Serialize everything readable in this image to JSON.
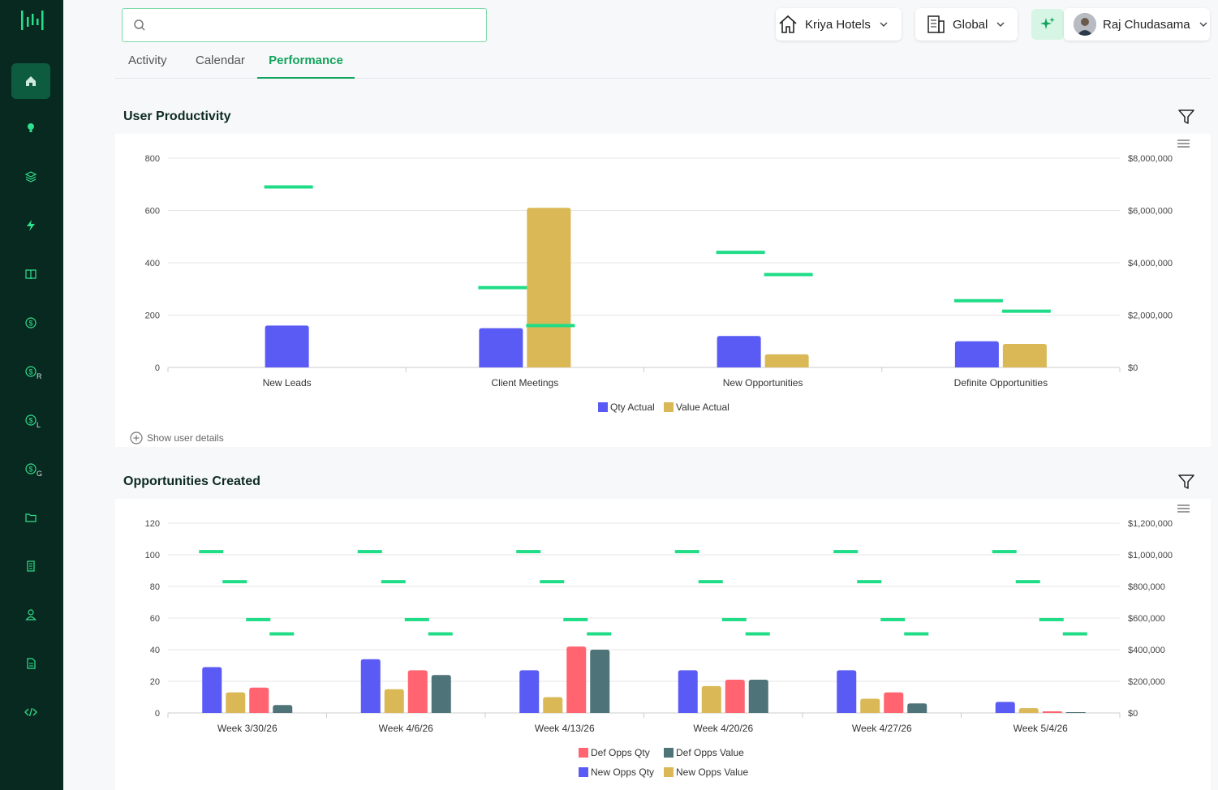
{
  "search": {
    "placeholder": ""
  },
  "tabs": [
    {
      "label": "Activity"
    },
    {
      "label": "Calendar"
    },
    {
      "label": "Performance"
    }
  ],
  "header": {
    "hotel": "Kriya Hotels",
    "scope": "Global",
    "user": "Raj Chudasama"
  },
  "sidebar": {
    "items": [
      {
        "icon": "home-icon"
      },
      {
        "icon": "lightbulb-icon"
      },
      {
        "icon": "layers-icon"
      },
      {
        "icon": "bolt-icon"
      },
      {
        "icon": "book-icon"
      },
      {
        "icon": "dollar-icon"
      },
      {
        "icon": "dollar-icon",
        "sub": "R"
      },
      {
        "icon": "dollar-icon",
        "sub": "L"
      },
      {
        "icon": "dollar-icon",
        "sub": "G"
      },
      {
        "icon": "folder-icon"
      },
      {
        "icon": "building-icon"
      },
      {
        "icon": "user-icon"
      },
      {
        "icon": "document-icon"
      },
      {
        "icon": "code-icon"
      }
    ]
  },
  "productivity": {
    "title": "User Productivity",
    "show_details": "Show user details"
  },
  "opportunities": {
    "title": "Opportunities Created"
  },
  "colors": {
    "accent": "#13a35e",
    "qty": "#5a5af5",
    "value": "#d9b855",
    "def_qty": "#ff6470",
    "def_value": "#4e7378",
    "target": "#1fdc87"
  },
  "chart_data": [
    {
      "type": "bar",
      "title": "User Productivity",
      "categories": [
        "New Leads",
        "Client Meetings",
        "New Opportunities",
        "Definite Opportunities"
      ],
      "ylim": [
        0,
        800
      ],
      "y2lim": [
        0,
        8000000
      ],
      "y_ticks": [
        "0",
        "200",
        "400",
        "600",
        "800"
      ],
      "y2_ticks": [
        "$0",
        "$2,000,000",
        "$4,000,000",
        "$6,000,000",
        "$8,000,000"
      ],
      "series": [
        {
          "name": "Qty Actual",
          "axis": "left",
          "values": [
            160,
            150,
            120,
            100
          ]
        },
        {
          "name": "Value Actual",
          "axis": "right",
          "values": [
            null,
            6100000,
            500000,
            900000
          ]
        }
      ],
      "targets": {
        "qty": [
          690,
          305,
          440,
          255
        ],
        "value": [
          null,
          1600000,
          3550000,
          2150000
        ]
      },
      "legend": "bottom"
    },
    {
      "type": "bar",
      "title": "Opportunities Created",
      "categories": [
        "Week 3/30/26",
        "Week 4/6/26",
        "Week 4/13/26",
        "Week 4/20/26",
        "Week 4/27/26",
        "Week 5/4/26"
      ],
      "ylim": [
        0,
        120
      ],
      "y2lim": [
        0,
        1200000
      ],
      "y_ticks": [
        "0",
        "20",
        "40",
        "60",
        "80",
        "100",
        "120"
      ],
      "y2_ticks": [
        "$0",
        "$200,000",
        "$400,000",
        "$600,000",
        "$800,000",
        "$1,000,000",
        "$1,200,000"
      ],
      "series": [
        {
          "name": "New Opps Qty",
          "axis": "left",
          "values": [
            29,
            34,
            27,
            27,
            27,
            7
          ]
        },
        {
          "name": "New Opps Value",
          "axis": "right",
          "values": [
            130000,
            150000,
            100000,
            170000,
            90000,
            30000
          ]
        },
        {
          "name": "Def Opps Qty",
          "axis": "left",
          "values": [
            16,
            27,
            42,
            21,
            13,
            1
          ]
        },
        {
          "name": "Def Opps Value",
          "axis": "right",
          "values": [
            50000,
            240000,
            400000,
            210000,
            60000,
            5000
          ]
        }
      ],
      "targets": {
        "new_qty": [
          102,
          102,
          102,
          102,
          102,
          102
        ],
        "new_value": [
          830000,
          830000,
          830000,
          830000,
          830000,
          830000
        ],
        "def_qty": [
          59,
          59,
          59,
          59,
          59,
          59
        ],
        "def_value": [
          500000,
          500000,
          500000,
          500000,
          500000,
          500000
        ]
      },
      "legend": "bottom"
    }
  ]
}
